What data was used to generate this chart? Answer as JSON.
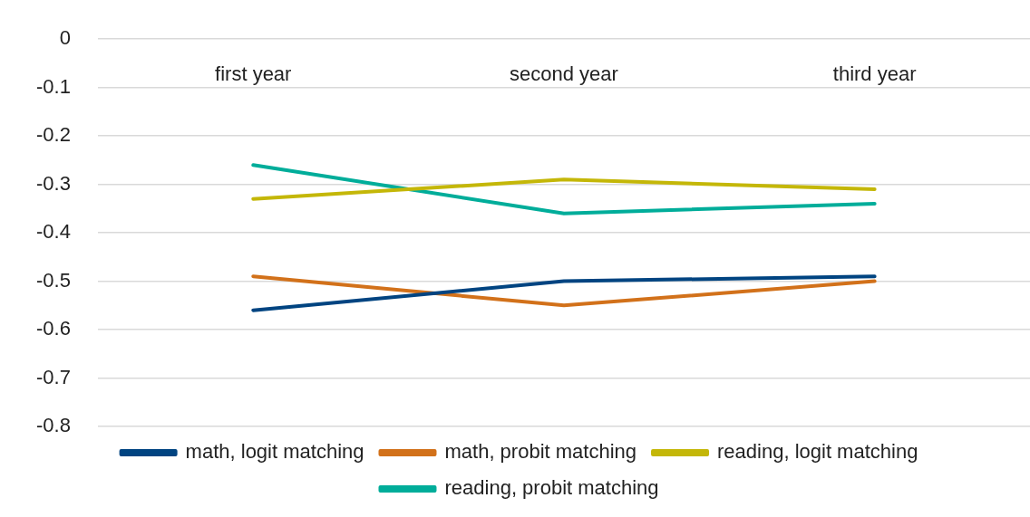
{
  "chart_data": {
    "type": "line",
    "categories": [
      "first year",
      "second year",
      "third year"
    ],
    "series": [
      {
        "name": "math, logit matching",
        "color": "#004481",
        "values": [
          -0.56,
          -0.5,
          -0.49
        ]
      },
      {
        "name": "math, probit matching",
        "color": "#d2711a",
        "values": [
          -0.49,
          -0.55,
          -0.5
        ]
      },
      {
        "name": "reading, logit matching",
        "color": "#c4b708",
        "values": [
          -0.33,
          -0.29,
          -0.31
        ]
      },
      {
        "name": "reading, probit matching",
        "color": "#00ad9a",
        "values": [
          -0.26,
          -0.36,
          -0.34
        ]
      }
    ],
    "ylim": [
      -0.8,
      0
    ],
    "yticks": [
      -0.8,
      -0.7,
      -0.6,
      -0.5,
      -0.4,
      -0.3,
      -0.2,
      -0.1,
      0
    ],
    "grid": "y",
    "legend": "bottom",
    "marker": "none",
    "line_style": "solid"
  }
}
